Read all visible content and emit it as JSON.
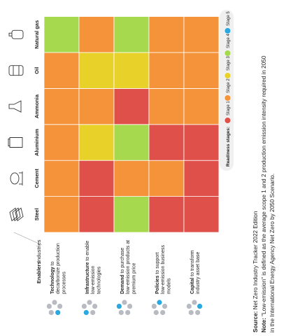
{
  "chart_data": {
    "type": "heatmap",
    "orientation": "rotated-90-ccw",
    "row_header": "Industries",
    "col_header": "Enablers",
    "industries": [
      "Steel",
      "Cement",
      "Aluminium",
      "Ammonia",
      "Oil",
      "Natural gas"
    ],
    "enablers": [
      {
        "bold": "Technology",
        "rest": " to decarbonize production processes"
      },
      {
        "bold": "Infrastructure",
        "rest": " to enable low-emission technologies"
      },
      {
        "bold": "Demand",
        "rest": " to purchase low-emission products at premium price"
      },
      {
        "bold": "Policies",
        "rest": " to support low-emission business models"
      },
      {
        "bold": "Capital",
        "rest": " to transform industry asset base"
      }
    ],
    "values": [
      [
        2,
        2,
        2,
        2,
        2,
        4
      ],
      [
        1,
        1,
        3,
        2,
        3,
        2
      ],
      [
        4,
        2,
        4,
        1,
        3,
        4
      ],
      [
        1,
        2,
        1,
        2,
        2,
        2
      ],
      [
        1,
        1,
        1,
        2,
        2,
        2
      ]
    ],
    "legend": {
      "title": "Readiness stages:",
      "stages": [
        {
          "label": "Stage 1",
          "value": 1
        },
        {
          "label": "Stage 2",
          "value": 2
        },
        {
          "label": "Stage 3",
          "value": 3
        },
        {
          "label": "Stage 4",
          "value": 4
        },
        {
          "label": "Stage 5",
          "value": 5
        }
      ]
    },
    "source_label": "Source:",
    "source_text": " Net Zero Industry Tracker 2022 Edition",
    "note_label": "Note:",
    "note_line1": " \"Low-emission\" is defined as the average scope 1 and 2 production emission intensity required in 2050",
    "note_line2": "in the International Energy Agency Net Zero by 2050 Scenario."
  },
  "colors": {
    "stage_1": "#e0504a",
    "stage_2": "#f4933a",
    "stage_3": "#e8d22a",
    "stage_4": "#a6d94e",
    "stage_5": "#2ba8e0"
  },
  "icons": {
    "industries": [
      "steel-sheets-icon",
      "cement-mixer-icon",
      "aluminium-can-icon",
      "ammonia-flask-icon",
      "oil-barrel-icon",
      "natural-gas-tank-icon"
    ],
    "enablers": "pentagon-segment-icon"
  }
}
